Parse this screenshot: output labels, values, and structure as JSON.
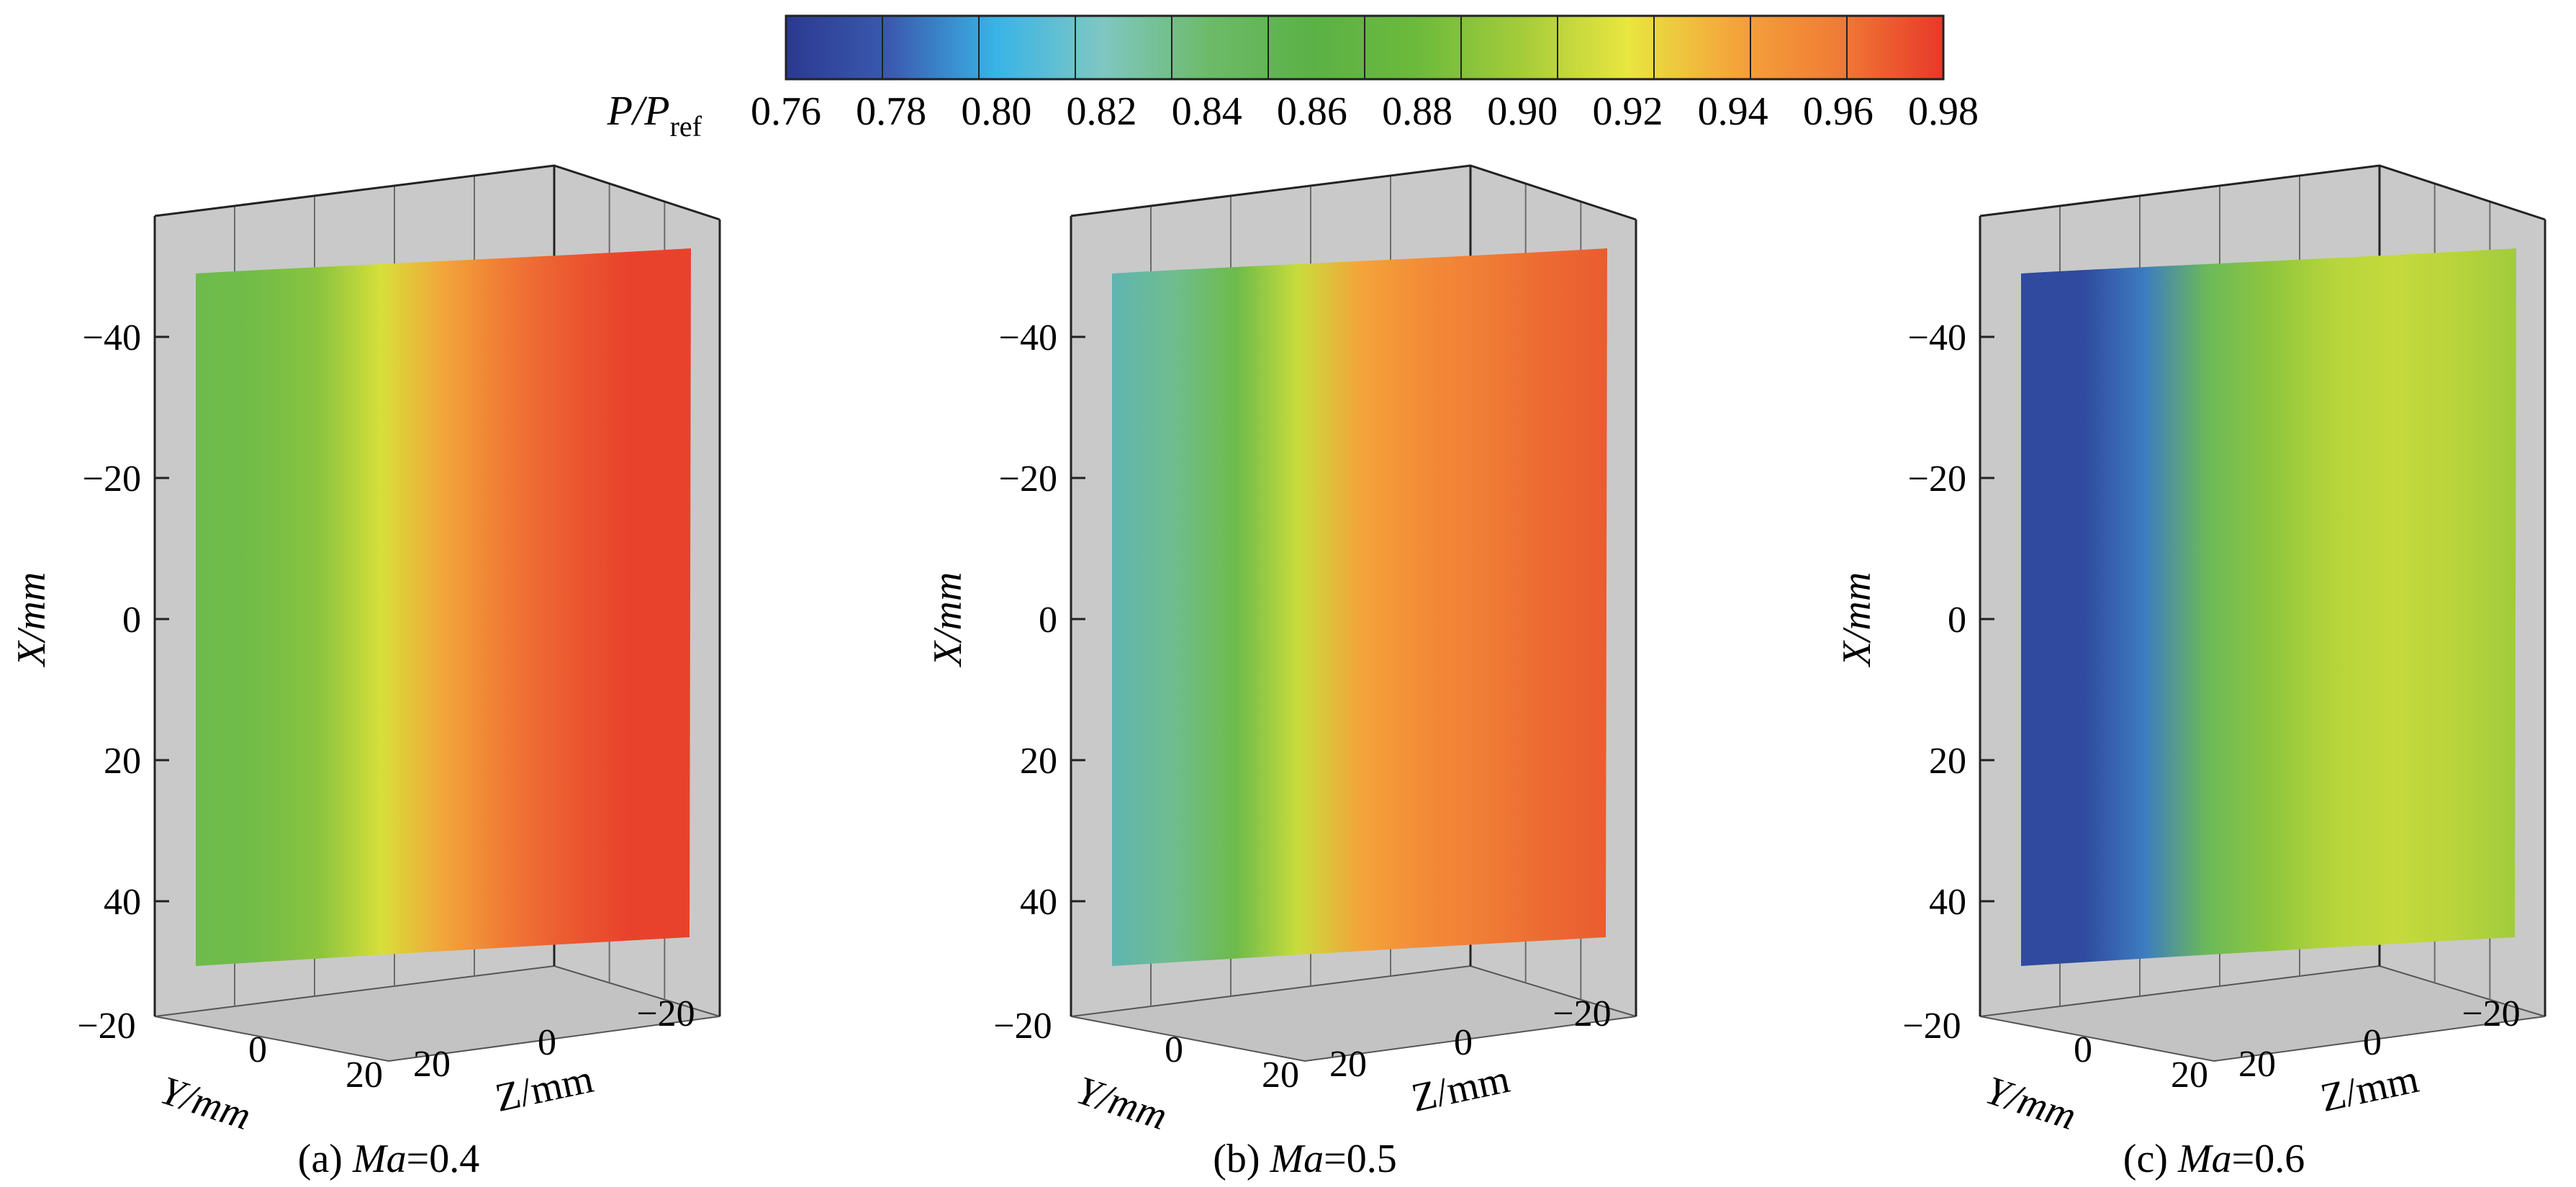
{
  "colorbar": {
    "label_main": "P/P",
    "label_sub": "ref",
    "ticks": [
      "0.76",
      "0.78",
      "0.80",
      "0.82",
      "0.84",
      "0.86",
      "0.88",
      "0.90",
      "0.92",
      "0.94",
      "0.96",
      "0.98"
    ],
    "range": [
      0.76,
      0.98
    ],
    "colors": [
      "#2b3990",
      "#3a5bb0",
      "#39b4e6",
      "#7fc7c3",
      "#6dbb6a",
      "#5bb146",
      "#6cba3c",
      "#a5cc3a",
      "#e9e640",
      "#f5a53b",
      "#f07c35",
      "#e8382a"
    ]
  },
  "chart_data": [
    {
      "type": "heatmap",
      "caption_prefix": "(a) ",
      "caption_var": "Ma",
      "caption_value": "=0.4",
      "ma": 0.4,
      "x_label": "X/mm",
      "y_label": "Y/mm",
      "z_label": "Z/mm",
      "x_ticks": [
        "−40",
        "−20",
        "0",
        "20",
        "40"
      ],
      "y_ticks": [
        "−20",
        "0",
        "20"
      ],
      "z_ticks": [
        "20",
        "0",
        "−20"
      ],
      "surface_colors": [
        "#6dbb4c",
        "#72bd48",
        "#8cc43e",
        "#d7df3a",
        "#f3a53a",
        "#f07a35",
        "#ec5a31",
        "#e8422c",
        "#e8422c"
      ]
    },
    {
      "type": "heatmap",
      "caption_prefix": "(b) ",
      "caption_var": "Ma",
      "caption_value": "=0.5",
      "ma": 0.5,
      "x_label": "X/mm",
      "y_label": "Y/mm",
      "z_label": "Z/mm",
      "x_ticks": [
        "−40",
        "−20",
        "0",
        "20",
        "40"
      ],
      "y_ticks": [
        "−20",
        "0",
        "20"
      ],
      "z_ticks": [
        "20",
        "0",
        "−20"
      ],
      "surface_colors": [
        "#5fb5b0",
        "#6fbd8e",
        "#6dbb4a",
        "#c8dc3c",
        "#f3a53a",
        "#f38c37",
        "#f07d35",
        "#ec6a32",
        "#ea5c30"
      ]
    },
    {
      "type": "heatmap",
      "caption_prefix": "(c) ",
      "caption_var": "Ma",
      "caption_value": "=0.6",
      "ma": 0.6,
      "x_label": "X/mm",
      "y_label": "Y/mm",
      "z_label": "Z/mm",
      "x_ticks": [
        "−40",
        "−20",
        "0",
        "20",
        "40"
      ],
      "y_ticks": [
        "−20",
        "0",
        "20"
      ],
      "z_ticks": [
        "20",
        "0",
        "−20"
      ],
      "surface_colors": [
        "#2f4a9e",
        "#2f4a9e",
        "#3d7cc0",
        "#6cb95a",
        "#8dc63d",
        "#b5d43b",
        "#c5da3c",
        "#b9d43b",
        "#a0cc3c"
      ]
    }
  ]
}
